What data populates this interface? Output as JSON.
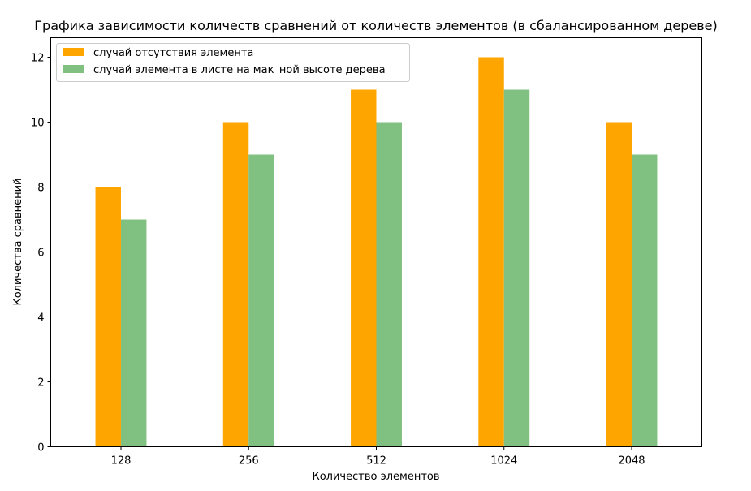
{
  "chart_data": {
    "type": "bar",
    "title": "Графика зависимости количеств сравнений от количеств элементов (в сбалансированном дереве)",
    "xlabel": "Количество элементов",
    "ylabel": "Количества сравнений",
    "categories": [
      "128",
      "256",
      "512",
      "1024",
      "2048"
    ],
    "series": [
      {
        "name": "случай отсутствия элемента",
        "color": "#ffa500",
        "values": [
          8,
          10,
          11,
          12,
          10
        ]
      },
      {
        "name": "случай элемента в листе на мак_ной высоте дерева",
        "color": "#80c080",
        "values": [
          7,
          9,
          10,
          11,
          9
        ]
      }
    ],
    "ylim": [
      0,
      12.6
    ],
    "yticks": [
      0,
      2,
      4,
      6,
      8,
      10,
      12
    ],
    "grid": false,
    "legend": "top-left"
  }
}
